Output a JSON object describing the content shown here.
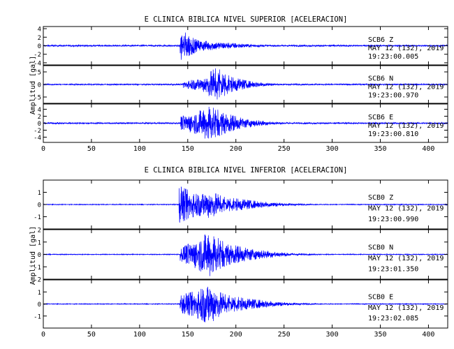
{
  "chart_data": [
    {
      "type": "line",
      "title": "E CLINICA BIBLICA NIVEL SUPERIOR [ACELERACION]",
      "ylabel": "Amplitud [gal]",
      "xlim": [
        0,
        420
      ],
      "xticks": [
        0,
        50,
        100,
        150,
        200,
        250,
        300,
        350,
        400
      ],
      "grid": false,
      "panels": [
        {
          "station": "SCB6",
          "channel": "Z",
          "date": "MAY 12 (132), 2019",
          "time": "19:23:00.005",
          "ylim": [
            -4.5,
            4.5
          ],
          "yticks": [
            -4,
            -2,
            0,
            2,
            4
          ],
          "yticklabels": [
            "-4",
            "-2",
            "0",
            "2",
            "4"
          ],
          "noise": 0.18,
          "envelope": [
            [
              142,
              3.9
            ],
            [
              160,
              1.3
            ],
            [
              185,
              0.8
            ],
            [
              215,
              0.35
            ],
            [
              240,
              0.15
            ]
          ]
        },
        {
          "station": "SCB6",
          "channel": "N",
          "date": "MAY 12 (132), 2019",
          "time": "19:23:00.970",
          "ylim": [
            -7.5,
            7.5
          ],
          "yticks": [
            -5,
            0,
            5
          ],
          "yticklabels": [
            "-5",
            "0",
            "5"
          ],
          "noise": 0.25,
          "envelope": [
            [
              145,
              1.4
            ],
            [
              165,
              2.5
            ],
            [
              180,
              7.0
            ],
            [
              195,
              3.0
            ],
            [
              215,
              1.3
            ],
            [
              240,
              0.4
            ]
          ]
        },
        {
          "station": "SCB6",
          "channel": "E",
          "date": "MAY 12 (132), 2019",
          "time": "19:23:00.810",
          "ylim": [
            -5.5,
            5.5
          ],
          "yticks": [
            -4,
            -2,
            0,
            2,
            4
          ],
          "yticklabels": [
            "-4",
            "-2",
            "0",
            "2",
            "4"
          ],
          "noise": 0.2,
          "envelope": [
            [
              142,
              1.8
            ],
            [
              160,
              3.2
            ],
            [
              172,
              5.0
            ],
            [
              190,
              2.8
            ],
            [
              210,
              1.2
            ],
            [
              240,
              0.4
            ]
          ]
        }
      ]
    },
    {
      "type": "line",
      "title": "E CLINICA BIBLICA NIVEL INFERIOR [ACELERACION]",
      "ylabel": "Amplitud [gal]",
      "xlim": [
        0,
        420
      ],
      "xticks": [
        0,
        50,
        100,
        150,
        200,
        250,
        300,
        350,
        400
      ],
      "grid": false,
      "panels": [
        {
          "station": "SCB0",
          "channel": "Z",
          "date": "MAY 12 (132), 2019",
          "time": "19:23:00.990",
          "ylim": [
            -2,
            2
          ],
          "yticks": [
            -1,
            0,
            1
          ],
          "yticklabels": [
            "-1",
            "0",
            "1"
          ],
          "noise": 0.03,
          "envelope": [
            [
              141,
              1.5
            ],
            [
              160,
              0.9
            ],
            [
              172,
              1.1
            ],
            [
              190,
              0.6
            ],
            [
              220,
              0.3
            ],
            [
              250,
              0.12
            ]
          ]
        },
        {
          "station": "SCB0",
          "channel": "N",
          "date": "MAY 12 (132), 2019",
          "time": "19:23:01.350",
          "ylim": [
            -2,
            2
          ],
          "yticks": [
            -2,
            -1,
            0,
            1,
            2
          ],
          "yticklabels": [
            "-2",
            "-1",
            "0",
            "1",
            "2"
          ],
          "noise": 0.03,
          "envelope": [
            [
              142,
              0.5
            ],
            [
              160,
              1.2
            ],
            [
              172,
              1.8
            ],
            [
              190,
              0.9
            ],
            [
              215,
              0.45
            ],
            [
              250,
              0.15
            ]
          ]
        },
        {
          "station": "SCB0",
          "channel": "E",
          "date": "MAY 12 (132), 2019",
          "time": "19:23:02.085",
          "ylim": [
            -2,
            2
          ],
          "yticks": [
            -1,
            0,
            1
          ],
          "yticklabels": [
            "-1",
            "0",
            "1"
          ],
          "noise": 0.03,
          "envelope": [
            [
              142,
              0.7
            ],
            [
              158,
              1.1
            ],
            [
              172,
              1.7
            ],
            [
              185,
              0.9
            ],
            [
              210,
              0.45
            ],
            [
              250,
              0.15
            ]
          ]
        }
      ]
    }
  ],
  "style": {
    "trace_color": "#0000ff",
    "axis_color": "#000000",
    "background": "#ffffff"
  }
}
